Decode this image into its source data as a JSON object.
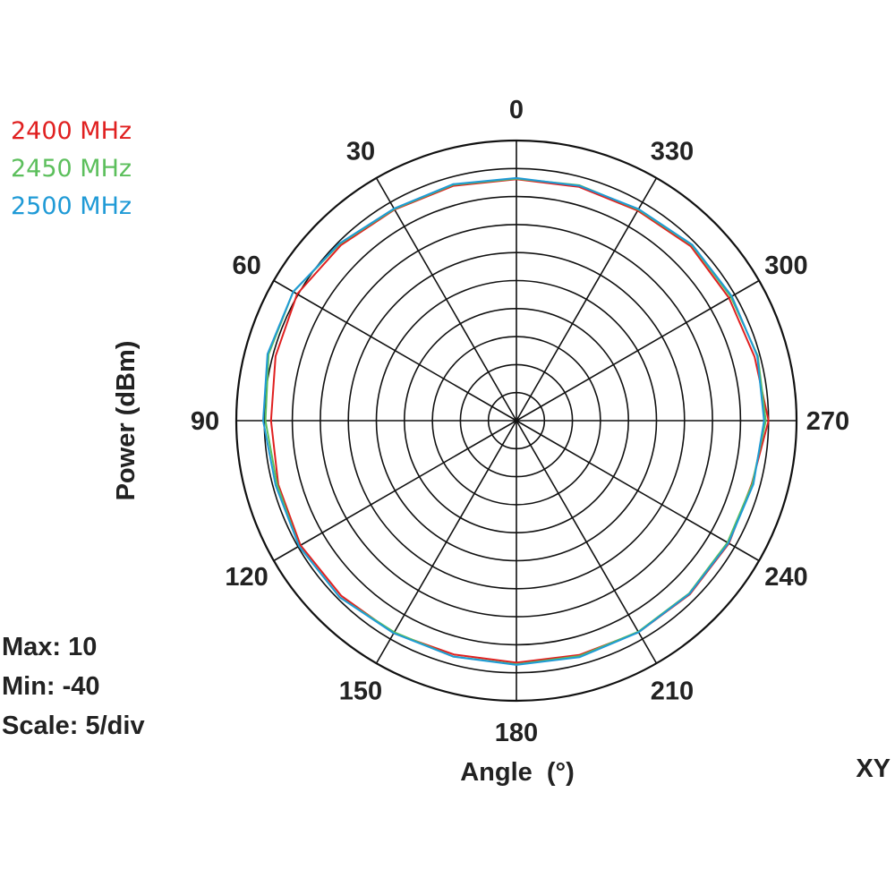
{
  "chart_data": {
    "type": "polar",
    "plane": "XY",
    "angular_axis": {
      "label": "Angle  (°)",
      "direction": "counterclockwise",
      "zero_at": "top",
      "ticks": [
        0,
        30,
        60,
        90,
        120,
        150,
        180,
        210,
        240,
        270,
        300,
        330
      ],
      "tick_labels": [
        "0",
        "30",
        "60",
        "90",
        "120",
        "150",
        "180",
        "210",
        "240",
        "270",
        "300",
        "330"
      ]
    },
    "radial_axis": {
      "label": "Power  (dBm)",
      "max": 10,
      "min": -40,
      "scale_per_div": 5,
      "divisions": 10
    },
    "stats": {
      "max_text": "Max: 10",
      "min_text": "Min: -40",
      "scale_text": "Scale: 5/div"
    },
    "theta": [
      0,
      15,
      30,
      45,
      60,
      75,
      90,
      105,
      120,
      135,
      150,
      165,
      180,
      195,
      210,
      225,
      240,
      255,
      270,
      285,
      300,
      315,
      330,
      345
    ],
    "series": [
      {
        "name": "2400 MHz",
        "color": "#e02020",
        "values": [
          3.1,
          3.4,
          3.5,
          4.3,
          5.2,
          4.5,
          3.8,
          4.0,
          4.5,
          4.2,
          3.8,
          3.2,
          3.2,
          3.3,
          3.6,
          3.8,
          3.8,
          3.5,
          5.0,
          4.0,
          3.8,
          4.0,
          3.3,
          3.2
        ]
      },
      {
        "name": "2450 MHz",
        "color": "#5cbf5c",
        "values": [
          3.2,
          3.6,
          3.6,
          4.6,
          6.0,
          5.8,
          4.8,
          4.2,
          4.8,
          4.6,
          3.6,
          3.6,
          3.5,
          3.5,
          3.5,
          3.6,
          3.5,
          3.6,
          4.5,
          4.6,
          4.2,
          4.3,
          3.5,
          3.5
        ]
      },
      {
        "name": "2500 MHz",
        "color": "#1f9ad6",
        "values": [
          3.3,
          3.7,
          3.7,
          4.7,
          6.0,
          6.0,
          5.2,
          4.5,
          4.8,
          4.6,
          3.8,
          3.6,
          3.6,
          3.7,
          3.6,
          3.7,
          3.7,
          3.8,
          4.2,
          4.5,
          4.4,
          4.4,
          3.6,
          3.4
        ]
      }
    ]
  }
}
